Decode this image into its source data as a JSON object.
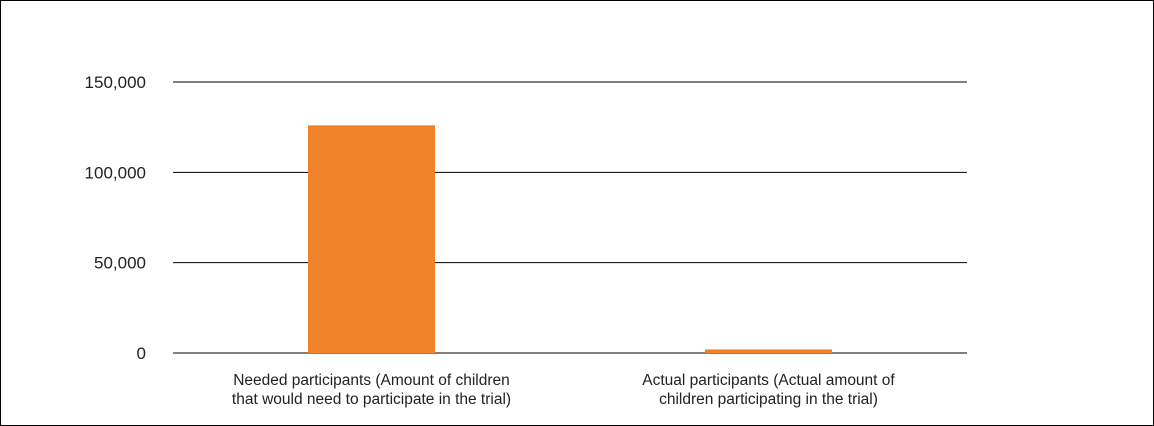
{
  "chart_data": {
    "type": "bar",
    "title": "",
    "xlabel": "",
    "ylabel": "",
    "categories": [
      "Needed participants (Amount of children that would need to participate in the trial)",
      "Actual participants (Actual amount of children participating in the trial)"
    ],
    "category_label_lines": [
      [
        "Needed  participants  (Amount  of  children",
        "that would need to participate in the trial)"
      ],
      [
        "Actual participants (Actual amount of",
        "children participating in the trial)"
      ]
    ],
    "values": [
      126000,
      2000
    ],
    "ylim": [
      0,
      150000
    ],
    "yticks": [
      0,
      50000,
      100000,
      150000
    ],
    "ytick_labels": [
      "0",
      "50,000",
      "100,000",
      "150,000"
    ],
    "grid": true,
    "legend": "none",
    "bar_color": "#f0832a",
    "grid_color": "#000000"
  }
}
